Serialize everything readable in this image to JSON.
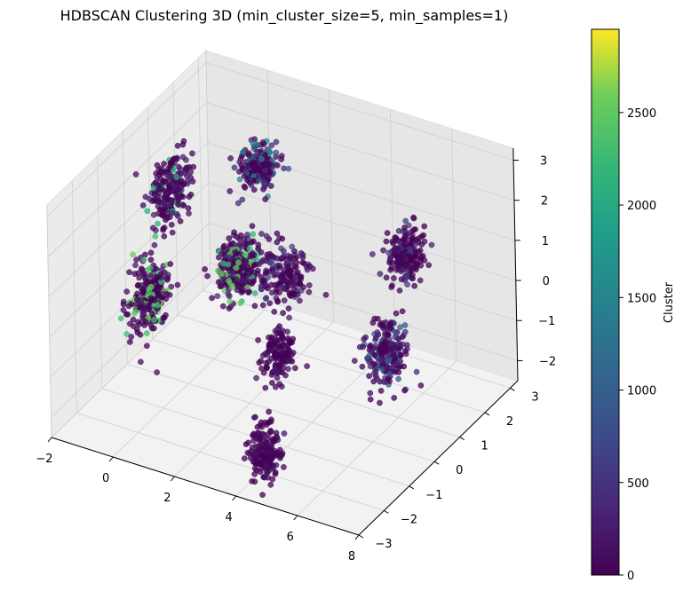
{
  "chart_data": {
    "type": "scatter",
    "projection": "3d",
    "title": "HDBSCAN Clustering 3D (min_cluster_size=5, min_samples=1)",
    "xlabel": "",
    "ylabel": "",
    "zlabel": "",
    "x_ticks": [
      "−2",
      "0",
      "2",
      "4",
      "6",
      "8"
    ],
    "y_ticks": [
      "−3",
      "−2",
      "−1",
      "0",
      "1",
      "2",
      "3"
    ],
    "z_ticks": [
      "−2",
      "−1",
      "0",
      "1",
      "2",
      "3"
    ],
    "xlim": [
      -2,
      8
    ],
    "ylim": [
      -3,
      3.3
    ],
    "zlim": [
      -2.5,
      3.3
    ],
    "grid": true,
    "colormap": "viridis",
    "colorbar": {
      "label": "Cluster",
      "ticks": [
        "0",
        "500",
        "1000",
        "1500",
        "2000",
        "2500"
      ],
      "range": [
        0,
        2950
      ]
    },
    "cluster_regions": [
      {
        "x": -1.5,
        "y": 1.2,
        "z": 1.2,
        "spread": [
          0.35,
          0.5,
          0.6
        ],
        "n": 220,
        "colors": [
          0,
          60,
          150,
          300,
          2100
        ]
      },
      {
        "x": -1.0,
        "y": -0.3,
        "z": -0.4,
        "spread": [
          0.4,
          0.5,
          0.7
        ],
        "n": 260,
        "colors": [
          0,
          100,
          250,
          2300,
          2600
        ]
      },
      {
        "x": 1.0,
        "y": 1.7,
        "z": 2.1,
        "spread": [
          0.4,
          0.4,
          0.4
        ],
        "n": 240,
        "colors": [
          0,
          100,
          400,
          900,
          1500
        ]
      },
      {
        "x": 1.2,
        "y": 0.6,
        "z": 0.3,
        "spread": [
          0.45,
          0.5,
          0.6
        ],
        "n": 300,
        "colors": [
          0,
          150,
          400,
          2200,
          2500
        ]
      },
      {
        "x": 2.8,
        "y": 0.5,
        "z": 0.6,
        "spread": [
          0.6,
          0.5,
          0.6
        ],
        "n": 160,
        "colors": [
          0,
          150,
          300,
          700
        ]
      },
      {
        "x": 3.8,
        "y": -1.0,
        "z": -0.2,
        "spread": [
          0.35,
          0.3,
          0.6
        ],
        "n": 140,
        "colors": [
          0,
          50,
          200
        ]
      },
      {
        "x": 4.3,
        "y": -2.2,
        "z": -1.8,
        "spread": [
          0.35,
          0.3,
          0.6
        ],
        "n": 180,
        "colors": [
          0,
          50,
          200
        ]
      },
      {
        "x": 6.2,
        "y": 1.2,
        "z": 1.5,
        "spread": [
          0.4,
          0.4,
          0.5
        ],
        "n": 200,
        "colors": [
          0,
          100,
          300,
          600
        ]
      },
      {
        "x": 6.5,
        "y": 0.0,
        "z": -0.2,
        "spread": [
          0.45,
          0.4,
          0.6
        ],
        "n": 220,
        "colors": [
          0,
          150,
          400,
          900
        ]
      }
    ]
  }
}
